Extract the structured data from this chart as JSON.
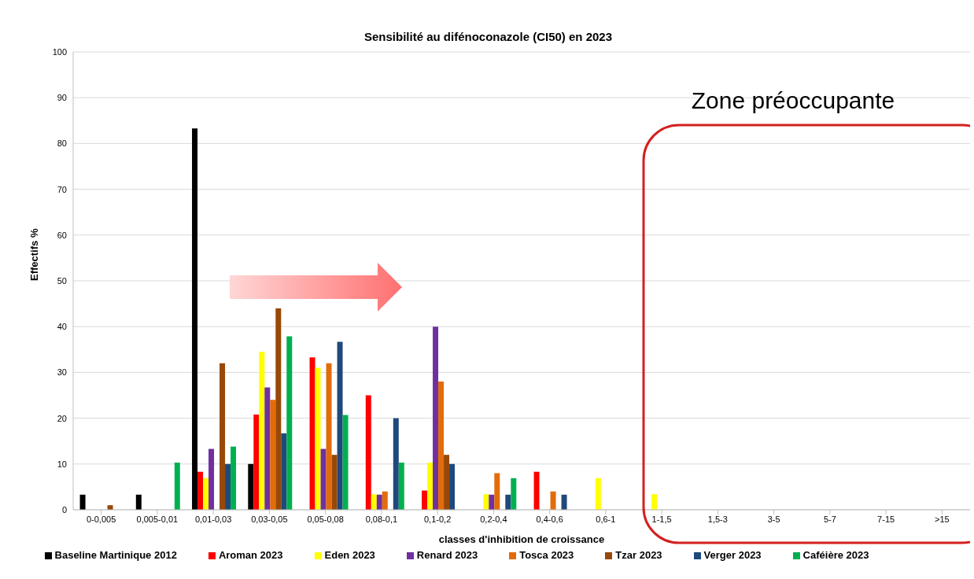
{
  "chart_data": {
    "type": "bar",
    "title": "Sensibilité au difénoconazole (CI50) en 2023",
    "xlabel": "classes d'inhibition de croissance",
    "ylabel": "Effectifs %",
    "categories": [
      "0-0,005",
      "0,005-0,01",
      "0,01-0,03",
      "0,03-0,05",
      "0,05-0,08",
      "0,08-0,1",
      "0,1-0,2",
      "0,2-0,4",
      "0,4-0,6",
      "0,6-1",
      "1-1,5",
      "1,5-3",
      "3-5",
      "5-7",
      "7-15",
      ">15"
    ],
    "series": [
      {
        "name": "Baseline Martinique 2012",
        "color": "#000000",
        "values": [
          3.3,
          3.3,
          83.3,
          10,
          null,
          null,
          null,
          null,
          null,
          null,
          null,
          null,
          null,
          null,
          null,
          null
        ]
      },
      {
        "name": "Aroman 2023",
        "color": "#ff0000",
        "values": [
          null,
          null,
          8.3,
          20.8,
          33.3,
          25,
          4.2,
          null,
          8.3,
          null,
          null,
          null,
          null,
          null,
          null,
          null
        ]
      },
      {
        "name": "Eden 2023",
        "color": "#ffff00",
        "values": [
          null,
          null,
          6.9,
          34.5,
          31,
          3.4,
          10.3,
          3.4,
          null,
          6.9,
          3.4,
          null,
          null,
          null,
          null,
          null
        ]
      },
      {
        "name": "Renard 2023",
        "color": "#7030a0",
        "values": [
          null,
          null,
          13.3,
          26.7,
          13.3,
          3.3,
          40,
          3.3,
          null,
          null,
          null,
          null,
          null,
          null,
          null,
          null
        ]
      },
      {
        "name": "Tosca 2023",
        "color": "#e36c0a",
        "values": [
          null,
          null,
          null,
          24,
          32,
          4,
          28,
          8,
          4,
          null,
          null,
          null,
          null,
          null,
          null,
          null
        ]
      },
      {
        "name": "Tzar 2023",
        "color": "#984807",
        "values": [
          1,
          null,
          32,
          44,
          12,
          null,
          12,
          null,
          null,
          null,
          null,
          null,
          null,
          null,
          null,
          null
        ]
      },
      {
        "name": "Verger 2023",
        "color": "#1f497d",
        "values": [
          null,
          null,
          10,
          16.7,
          36.7,
          20,
          10,
          3.3,
          3.3,
          null,
          null,
          null,
          null,
          null,
          null,
          null
        ]
      },
      {
        "name": "Caféière 2023",
        "color": "#00b050",
        "values": [
          null,
          10.3,
          13.8,
          37.9,
          20.7,
          10.3,
          null,
          6.9,
          null,
          null,
          null,
          null,
          null,
          null,
          null,
          null
        ]
      }
    ],
    "ylim": [
      0,
      100
    ],
    "yticks": [
      0,
      10,
      20,
      30,
      40,
      50,
      60,
      70,
      80,
      90,
      100
    ],
    "grid": "y",
    "legend": "bottom",
    "annotations": [
      "Zone préoccupante"
    ]
  }
}
